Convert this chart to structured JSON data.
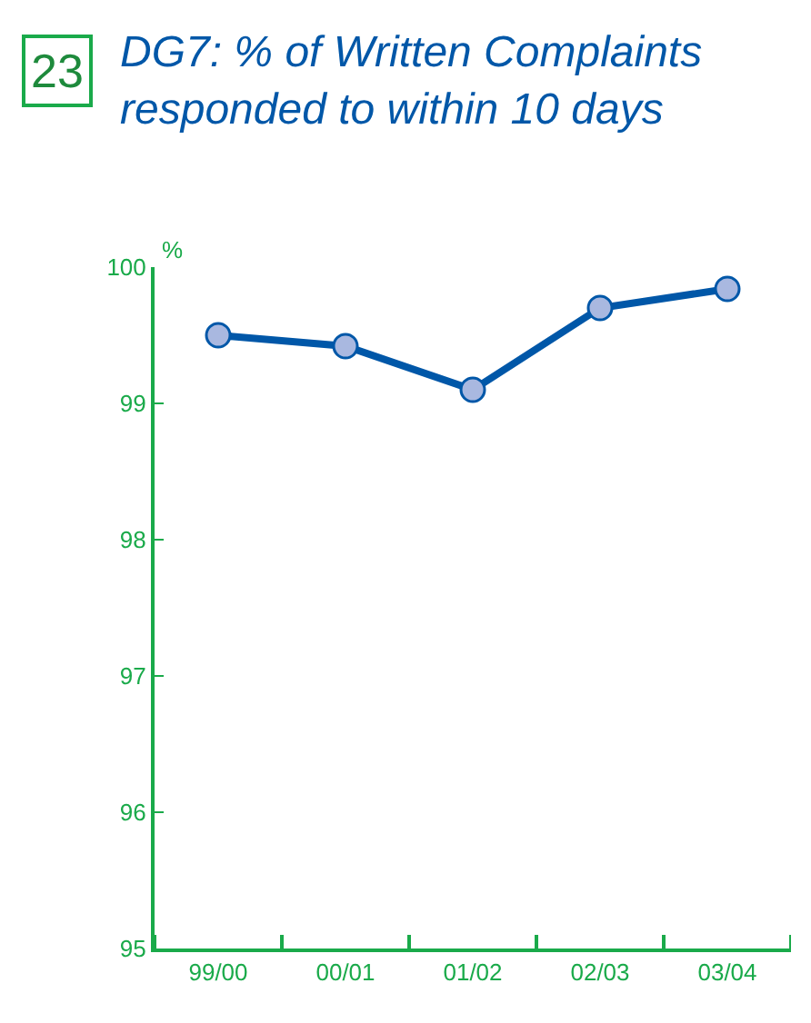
{
  "chart_data": {
    "type": "line",
    "title": "DG7: % of Written Complaints responded to within 10 days",
    "ylabel": "%",
    "annotations": [
      "23"
    ],
    "categories": [
      "99/00",
      "00/01",
      "01/02",
      "02/03",
      "03/04"
    ],
    "series": [
      {
        "color": "#0057a8",
        "values": [
          99.5,
          99.42,
          99.1,
          99.7,
          99.84
        ]
      }
    ],
    "ylim": [
      95,
      100
    ],
    "yticks": [
      95,
      96,
      97,
      98,
      99,
      100
    ],
    "marker": "circle",
    "line_style": "solid"
  }
}
